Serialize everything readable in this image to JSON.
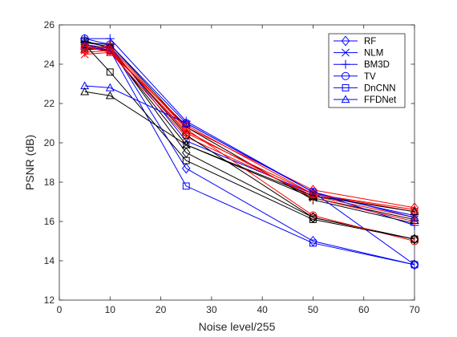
{
  "chart_data": {
    "type": "line",
    "title": "",
    "xlabel": "Noise level/255",
    "ylabel": "PSNR (dB)",
    "xlim": [
      0,
      70
    ],
    "ylim": [
      12,
      26
    ],
    "x_ticks": [
      0,
      10,
      20,
      30,
      40,
      50,
      60,
      70
    ],
    "y_ticks": [
      12,
      14,
      16,
      18,
      20,
      22,
      24,
      26
    ],
    "x": [
      5,
      10,
      25,
      50,
      70
    ],
    "grid": false,
    "legend_position": "top-right",
    "colors": {
      "blue": "#0000ff",
      "black": "#000000",
      "red": "#ff0000"
    },
    "legend": [
      {
        "label": "RF",
        "marker": "diamond"
      },
      {
        "label": "NLM",
        "marker": "x"
      },
      {
        "label": "BM3D",
        "marker": "plus"
      },
      {
        "label": "TV",
        "marker": "circle"
      },
      {
        "label": "DnCNN",
        "marker": "square"
      },
      {
        "label": "FFDNet",
        "marker": "triangle"
      }
    ],
    "series": [
      {
        "method": "RF",
        "color": "blue",
        "marker": "diamond",
        "values": [
          25.1,
          24.9,
          18.7,
          15.0,
          13.8
        ]
      },
      {
        "method": "RF",
        "color": "black",
        "marker": "diamond",
        "values": [
          25.0,
          24.8,
          19.5,
          16.2,
          15.1
        ]
      },
      {
        "method": "RF",
        "color": "red",
        "marker": "diamond",
        "values": [
          24.9,
          24.7,
          20.8,
          17.6,
          16.7
        ]
      },
      {
        "method": "NLM",
        "color": "blue",
        "marker": "x",
        "values": [
          24.7,
          24.9,
          20.1,
          17.4,
          16.3
        ]
      },
      {
        "method": "NLM",
        "color": "black",
        "marker": "x",
        "values": [
          24.8,
          24.7,
          19.9,
          17.2,
          16.1
        ]
      },
      {
        "method": "NLM",
        "color": "red",
        "marker": "x",
        "values": [
          24.5,
          24.6,
          20.3,
          17.3,
          16.2
        ]
      },
      {
        "method": "BM3D",
        "color": "blue",
        "marker": "plus",
        "values": [
          25.3,
          25.3,
          21.1,
          17.5,
          15.8
        ]
      },
      {
        "method": "BM3D",
        "color": "black",
        "marker": "plus",
        "values": [
          25.1,
          25.0,
          20.8,
          17.1,
          15.9
        ]
      },
      {
        "method": "BM3D",
        "color": "red",
        "marker": "plus",
        "values": [
          24.6,
          24.7,
          20.6,
          17.2,
          16.0
        ]
      },
      {
        "method": "TV",
        "color": "blue",
        "marker": "circle",
        "values": [
          25.3,
          25.0,
          21.0,
          17.5,
          13.8
        ]
      },
      {
        "method": "TV",
        "color": "black",
        "marker": "circle",
        "values": [
          25.2,
          24.8,
          20.4,
          16.2,
          15.1
        ]
      },
      {
        "method": "TV",
        "color": "red",
        "marker": "circle",
        "values": [
          24.8,
          24.9,
          20.7,
          16.3,
          15.0
        ]
      },
      {
        "method": "DnCNN",
        "color": "blue",
        "marker": "square",
        "values": [
          25.0,
          24.7,
          17.8,
          14.9,
          13.8
        ]
      },
      {
        "method": "DnCNN",
        "color": "black",
        "marker": "square",
        "values": [
          25.0,
          23.6,
          19.1,
          16.1,
          15.1
        ]
      },
      {
        "method": "DnCNN",
        "color": "red",
        "marker": "square",
        "values": [
          24.9,
          24.6,
          20.9,
          17.4,
          16.5
        ]
      },
      {
        "method": "FFDNet",
        "color": "blue",
        "marker": "triangle",
        "values": [
          22.9,
          22.8,
          21.0,
          17.5,
          16.2
        ]
      },
      {
        "method": "FFDNet",
        "color": "black",
        "marker": "triangle",
        "values": [
          22.6,
          22.4,
          19.9,
          17.3,
          16.5
        ]
      },
      {
        "method": "FFDNet",
        "color": "red",
        "marker": "triangle",
        "values": [
          24.9,
          24.8,
          20.5,
          17.4,
          16.6
        ]
      }
    ]
  }
}
